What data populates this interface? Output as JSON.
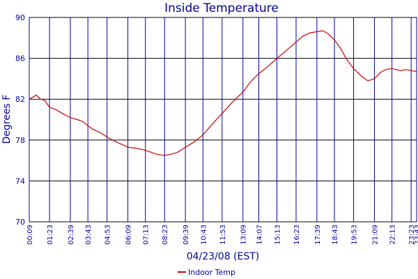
{
  "chart_data": {
    "type": "line",
    "title": "Inside Temperature",
    "xlabel": "04/23/08 (EST)",
    "ylabel": "Degrees F",
    "ylim": [
      70,
      90
    ],
    "yticks": [
      70,
      74,
      78,
      82,
      86,
      90
    ],
    "xlim": [
      "00:09",
      "23:43"
    ],
    "xticks": [
      "00:09",
      "01:23",
      "02:39",
      "03:43",
      "04:53",
      "06:09",
      "07:13",
      "08:23",
      "09:39",
      "10:43",
      "11:53",
      "13:09",
      "14:07",
      "15:13",
      "16:23",
      "17:39",
      "18:43",
      "19:53",
      "21:09",
      "22:13",
      "23:23",
      "23:43"
    ],
    "grid": true,
    "legend_position": "bottom-center",
    "series": [
      {
        "name": "Indoor Temp",
        "color": "#cc0000",
        "points": [
          [
            "00:09",
            82.0
          ],
          [
            "00:35",
            82.4
          ],
          [
            "00:50",
            82.0
          ],
          [
            "01:05",
            81.9
          ],
          [
            "01:23",
            81.2
          ],
          [
            "01:45",
            81.0
          ],
          [
            "02:10",
            80.6
          ],
          [
            "02:39",
            80.2
          ],
          [
            "03:05",
            80.0
          ],
          [
            "03:25",
            79.8
          ],
          [
            "03:43",
            79.4
          ],
          [
            "04:05",
            79.0
          ],
          [
            "04:30",
            78.7
          ],
          [
            "04:53",
            78.3
          ],
          [
            "05:20",
            77.9
          ],
          [
            "05:45",
            77.6
          ],
          [
            "06:09",
            77.3
          ],
          [
            "06:40",
            77.2
          ],
          [
            "07:13",
            77.0
          ],
          [
            "07:35",
            76.8
          ],
          [
            "07:55",
            76.6
          ],
          [
            "08:23",
            76.5
          ],
          [
            "08:45",
            76.6
          ],
          [
            "09:10",
            76.8
          ],
          [
            "09:39",
            77.3
          ],
          [
            "10:10",
            77.8
          ],
          [
            "10:43",
            78.5
          ],
          [
            "11:15",
            79.5
          ],
          [
            "11:53",
            80.6
          ],
          [
            "12:30",
            81.7
          ],
          [
            "13:09",
            82.7
          ],
          [
            "13:40",
            83.8
          ],
          [
            "14:07",
            84.5
          ],
          [
            "14:40",
            85.2
          ],
          [
            "15:13",
            86.0
          ],
          [
            "15:45",
            86.7
          ],
          [
            "16:23",
            87.6
          ],
          [
            "16:50",
            88.2
          ],
          [
            "17:15",
            88.5
          ],
          [
            "17:39",
            88.6
          ],
          [
            "18:00",
            88.7
          ],
          [
            "18:20",
            88.4
          ],
          [
            "18:43",
            87.8
          ],
          [
            "19:05",
            87.0
          ],
          [
            "19:25",
            86.0
          ],
          [
            "19:53",
            85.0
          ],
          [
            "20:20",
            84.3
          ],
          [
            "20:45",
            83.8
          ],
          [
            "21:09",
            84.0
          ],
          [
            "21:30",
            84.6
          ],
          [
            "21:50",
            84.9
          ],
          [
            "22:13",
            85.0
          ],
          [
            "22:45",
            84.8
          ],
          [
            "23:05",
            84.9
          ],
          [
            "23:23",
            84.8
          ],
          [
            "23:43",
            84.7
          ]
        ]
      }
    ]
  }
}
